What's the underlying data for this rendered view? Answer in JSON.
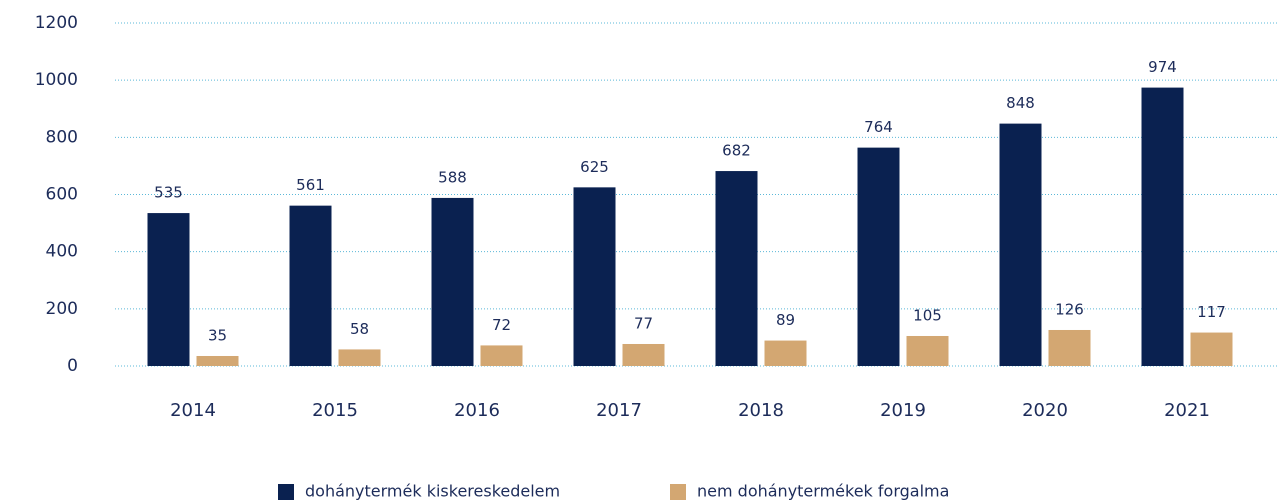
{
  "chart_data": {
    "type": "bar",
    "categories": [
      "2014",
      "2015",
      "2016",
      "2017",
      "2018",
      "2019",
      "2020",
      "2021"
    ],
    "series": [
      {
        "name": "dohánytermék kiskereskedelem",
        "color": "#0a2150",
        "values": [
          535,
          561,
          588,
          625,
          682,
          764,
          848,
          974
        ]
      },
      {
        "name": "nem dohánytermékek forgalma",
        "color": "#d3a772",
        "values": [
          35,
          58,
          72,
          77,
          89,
          105,
          126,
          117
        ]
      }
    ],
    "ylim": [
      0,
      1200
    ],
    "yticks": [
      0,
      200,
      400,
      600,
      800,
      1000,
      1200
    ],
    "grid": true,
    "legend": "bottom"
  }
}
